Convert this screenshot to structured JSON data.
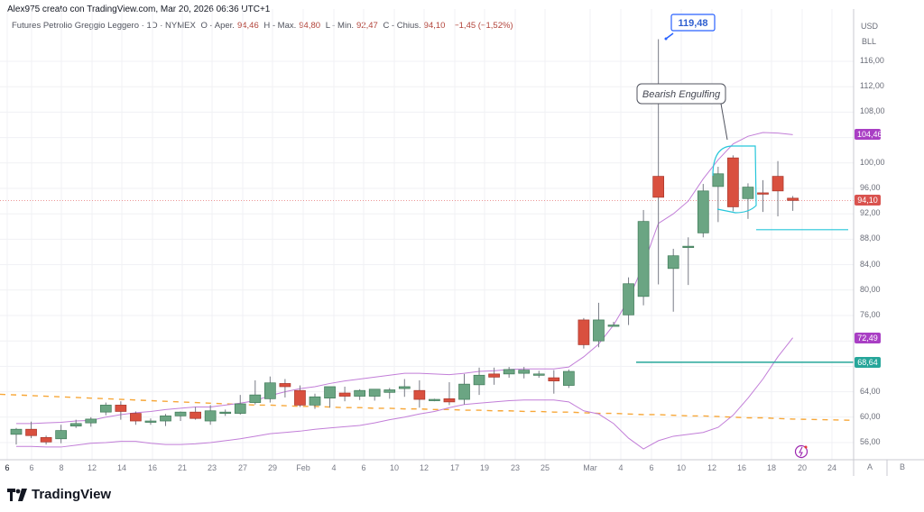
{
  "credit": "Alex975 creato con TradingView.com, Mar 20, 2026 06:36 UTC+1",
  "legend": {
    "symbol": "Futures Petrolio Greggio Leggero · 1D · NYMEX",
    "open_label": "O - Aper.",
    "open": "94,46",
    "high_label": "H - Max.",
    "high": "94,80",
    "low_label": "L - Min.",
    "low": "92,47",
    "close_label": "C - Chius.",
    "close": "94,10",
    "change": "−1,45 (−1,52%)"
  },
  "axis": {
    "currency": "USD",
    "unit": "BLL",
    "ticks": [
      "116,00",
      "112,00",
      "108,00",
      "100,00",
      "96,00",
      "92,00",
      "88,00",
      "84,00",
      "80,00",
      "76,00",
      "64,00",
      "60,00",
      "56,00"
    ],
    "badges": [
      {
        "value": "104,46",
        "color": "#a93fc4"
      },
      {
        "value": "94,10",
        "color": "#d9534f"
      },
      {
        "value": "72,49",
        "color": "#a93fc4"
      },
      {
        "value": "68,64",
        "color": "#26a69a"
      }
    ]
  },
  "time_axis": [
    "6",
    "6",
    "8",
    "12",
    "14",
    "16",
    "21",
    "23",
    "27",
    "29",
    "Feb",
    "4",
    "6",
    "10",
    "12",
    "17",
    "19",
    "23",
    "25",
    "Mar",
    "4",
    "6",
    "10",
    "12",
    "16",
    "18",
    "20",
    "24"
  ],
  "scale_buttons": {
    "a": "A",
    "b": "B"
  },
  "annotations": {
    "high_callout": "119,48",
    "pattern": "Bearish Engulfing"
  },
  "logo": "TradingView",
  "colors": {
    "up": "#6ba583",
    "down": "#d9503f",
    "bollinger": "#c27ed8",
    "ma_dashed": "#f7a738",
    "support": "#26a69a",
    "resistance": "#26c6da",
    "callout": "#2962ff"
  },
  "chart_data": {
    "type": "candlestick",
    "title": "Futures Petrolio Greggio Leggero · 1D · NYMEX",
    "xlabel": "",
    "ylabel": "USD/BLL",
    "ylim": [
      54,
      120
    ],
    "grid": true,
    "categories": [
      "Jan 5",
      "Jan 6",
      "Jan 7",
      "Jan 8",
      "Jan 9",
      "Jan 12",
      "Jan 13",
      "Jan 14",
      "Jan 15",
      "Jan 16",
      "Jan 20",
      "Jan 21",
      "Jan 22",
      "Jan 23",
      "Jan 26",
      "Jan 27",
      "Jan 28",
      "Jan 29",
      "Jan 30",
      "Feb 2",
      "Feb 3",
      "Feb 4",
      "Feb 5",
      "Feb 6",
      "Feb 9",
      "Feb 10",
      "Feb 11",
      "Feb 12",
      "Feb 13",
      "Feb 17",
      "Feb 18",
      "Feb 19",
      "Feb 20",
      "Feb 23",
      "Feb 24",
      "Feb 25",
      "Feb 26",
      "Feb 27",
      "Mar 2",
      "Mar 3",
      "Mar 4",
      "Mar 5",
      "Mar 6",
      "Mar 9",
      "Mar 10",
      "Mar 11",
      "Mar 12",
      "Mar 13",
      "Mar 16",
      "Mar 17",
      "Mar 18",
      "Mar 19",
      "Mar 20"
    ],
    "series": [
      {
        "name": "open",
        "values": [
          57.3,
          58.1,
          56.8,
          56.6,
          58.6,
          59.1,
          60.8,
          61.9,
          60.6,
          59.3,
          59.4,
          60.2,
          60.8,
          59.4,
          60.8,
          60.6,
          62.3,
          62.9,
          65.3,
          64.2,
          61.9,
          63.0,
          63.8,
          63.3,
          63.3,
          63.9,
          64.5,
          64.2,
          62.8,
          62.9,
          62.8,
          65.1,
          66.8,
          66.8,
          66.9,
          66.7,
          66.2,
          65.0,
          75.3,
          72.0,
          74.5,
          76.1,
          79.0,
          97.9,
          83.4,
          86.7,
          89.0,
          96.3,
          100.8,
          94.4,
          95.3,
          97.9,
          94.46
        ]
      },
      {
        "name": "high",
        "values": [
          58.3,
          59.3,
          57.1,
          58.8,
          59.6,
          60.0,
          62.3,
          62.5,
          60.9,
          59.8,
          60.5,
          60.9,
          61.6,
          61.9,
          61.2,
          63.5,
          65.8,
          66.4,
          66.0,
          65.0,
          63.7,
          64.2,
          64.8,
          64.4,
          64.4,
          64.6,
          66.0,
          65.8,
          62.9,
          65.5,
          66.8,
          67.8,
          67.8,
          67.9,
          67.9,
          67.3,
          67.4,
          67.5,
          75.6,
          78.0,
          75.0,
          82.0,
          92.6,
          119.48,
          86.5,
          88.3,
          96.7,
          99.4,
          101.2,
          96.8,
          97.3,
          100.3,
          94.8
        ]
      },
      {
        "name": "low",
        "values": [
          55.7,
          56.7,
          55.7,
          55.9,
          58.3,
          58.5,
          60.3,
          59.6,
          58.8,
          58.8,
          58.6,
          59.4,
          59.6,
          58.8,
          60.2,
          60.4,
          62.0,
          62.3,
          63.1,
          61.6,
          61.3,
          61.5,
          62.5,
          62.7,
          62.6,
          62.9,
          63.2,
          61.5,
          62.5,
          61.9,
          62.0,
          63.5,
          65.1,
          66.2,
          66.1,
          66.2,
          63.7,
          64.6,
          70.8,
          71.0,
          74.4,
          74.5,
          77.6,
          80.9,
          76.6,
          80.8,
          88.3,
          90.7,
          92.4,
          91.2,
          92.3,
          91.6,
          92.47
        ]
      },
      {
        "name": "close",
        "values": [
          58.1,
          57.1,
          56.1,
          57.9,
          59.0,
          59.7,
          61.9,
          60.9,
          59.4,
          59.4,
          60.2,
          60.8,
          59.8,
          61.0,
          60.8,
          62.1,
          63.5,
          65.4,
          64.8,
          61.9,
          63.2,
          64.8,
          63.3,
          64.2,
          64.4,
          64.3,
          64.8,
          62.8,
          62.8,
          62.4,
          65.2,
          66.6,
          66.3,
          67.5,
          67.4,
          66.8,
          65.7,
          67.2,
          71.4,
          75.3,
          74.5,
          81.0,
          90.8,
          94.6,
          85.4,
          86.9,
          95.6,
          98.3,
          93.1,
          96.2,
          95.2,
          95.6,
          94.1
        ]
      },
      {
        "name": "bb_upper",
        "values": [
          59.0,
          59.0,
          59.1,
          59.2,
          59.4,
          59.5,
          60.0,
          60.4,
          60.7,
          60.9,
          61.2,
          61.4,
          61.6,
          61.6,
          61.9,
          62.2,
          62.6,
          63.4,
          64.0,
          64.5,
          64.8,
          65.3,
          65.7,
          66.0,
          66.3,
          66.6,
          66.9,
          66.9,
          66.8,
          66.7,
          66.9,
          67.2,
          67.3,
          67.5,
          67.6,
          67.6,
          67.6,
          67.9,
          69.5,
          71.5,
          74.5,
          78.5,
          84.0,
          90.5,
          92.0,
          94.0,
          97.5,
          100.5,
          103.0,
          104.2,
          104.8,
          104.7,
          104.46
        ]
      },
      {
        "name": "bb_lower",
        "values": [
          55.4,
          55.4,
          55.3,
          55.3,
          55.6,
          55.9,
          56.0,
          56.2,
          56.2,
          55.9,
          55.7,
          55.7,
          55.8,
          56.0,
          56.3,
          56.6,
          57.0,
          57.4,
          57.6,
          57.8,
          58.1,
          58.3,
          58.5,
          58.7,
          59.1,
          59.6,
          60.0,
          60.5,
          60.9,
          61.5,
          62.0,
          62.2,
          62.4,
          62.6,
          62.7,
          62.7,
          62.7,
          62.4,
          61.0,
          60.5,
          59.0,
          56.7,
          55.0,
          56.3,
          57.0,
          57.3,
          57.6,
          58.4,
          60.3,
          63.0,
          66.0,
          69.5,
          72.49
        ]
      },
      {
        "name": "ma_dashed",
        "values": [
          63.5,
          63.4,
          63.3,
          63.2,
          63.1,
          63.0,
          62.9,
          62.8,
          62.7,
          62.6,
          62.5,
          62.4,
          62.3,
          62.2,
          62.1,
          62.0,
          61.9,
          61.9,
          61.8,
          61.7,
          61.7,
          61.6,
          61.5,
          61.5,
          61.4,
          61.4,
          61.3,
          61.3,
          61.2,
          61.2,
          61.1,
          61.1,
          61.0,
          61.0,
          60.9,
          60.9,
          60.8,
          60.8,
          60.7,
          60.6,
          60.6,
          60.5,
          60.4,
          60.4,
          60.3,
          60.2,
          60.2,
          60.1,
          60.0,
          59.9,
          59.9,
          59.8,
          59.7
        ]
      }
    ],
    "horizontal_lines": [
      {
        "value": 68.64,
        "color": "#26a69a",
        "from": "Mar 5"
      },
      {
        "value": 89.5,
        "color": "#26c6da",
        "from": "Mar 16"
      }
    ],
    "annotations": [
      {
        "text": "119,48",
        "at": "Mar 9",
        "value": 119.48
      },
      {
        "text": "Bearish Engulfing",
        "at": "Mar 16"
      }
    ],
    "last_price": 94.1
  }
}
